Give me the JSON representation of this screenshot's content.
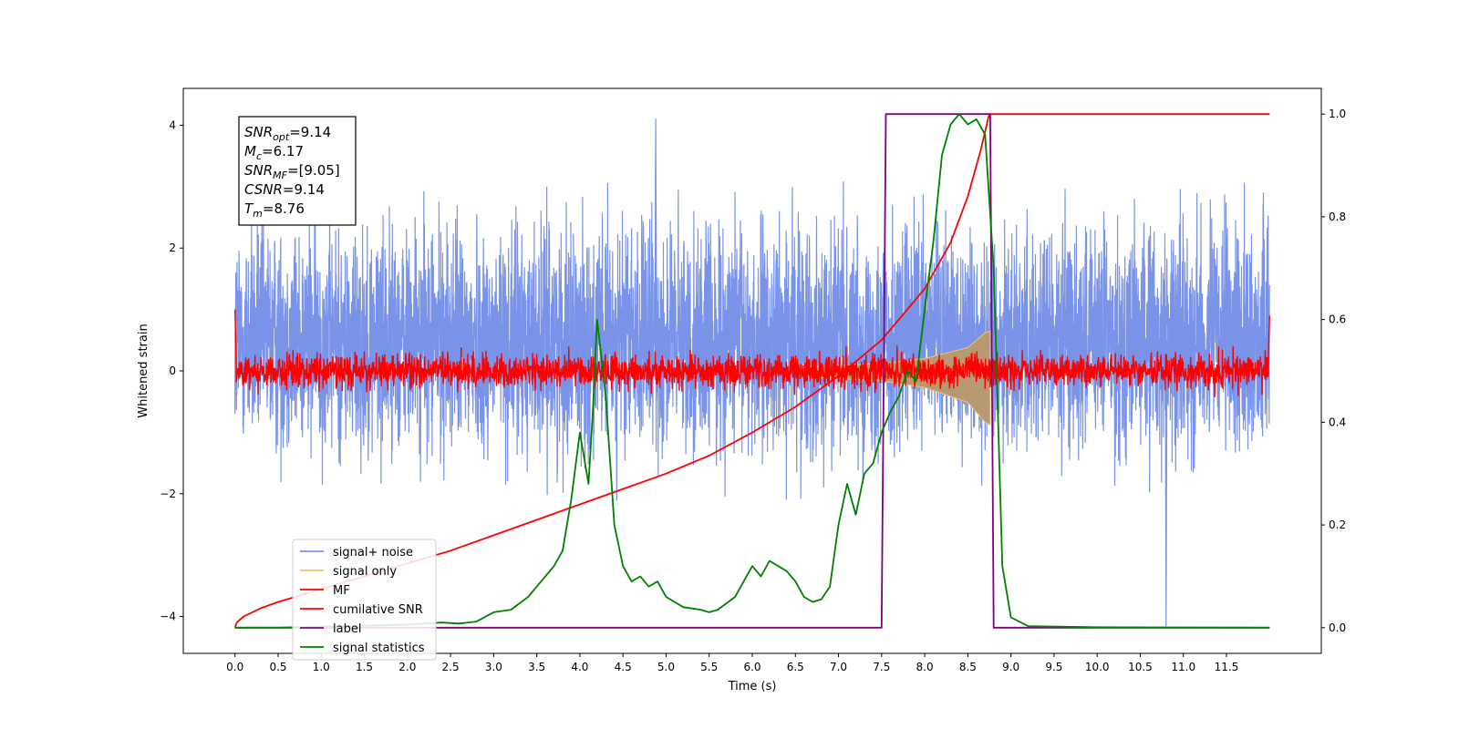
{
  "chart_data": {
    "type": "line",
    "xlabel": "Time (s)",
    "ylabel": "Whitened strain",
    "xlim": [
      -0.6,
      12.6
    ],
    "ylim": [
      -4.6,
      4.6
    ],
    "y2lim": [
      -0.05,
      1.05
    ],
    "grid": false,
    "legend_position": "lower-left",
    "x_ticks": [
      "0.0",
      "0.5",
      "1.0",
      "1.5",
      "2.0",
      "2.5",
      "3.0",
      "3.5",
      "4.0",
      "4.5",
      "5.0",
      "5.5",
      "6.0",
      "6.5",
      "7.0",
      "7.5",
      "8.0",
      "8.5",
      "9.0",
      "9.5",
      "10.0",
      "10.5",
      "11.0",
      "11.5"
    ],
    "y_ticks": [
      "−4",
      "−2",
      "0",
      "2",
      "4"
    ],
    "y2_ticks": [
      "0.0",
      "0.2",
      "0.4",
      "0.6",
      "0.8",
      "1.0"
    ],
    "annotation": {
      "lines": [
        {
          "base": "SNR",
          "sub": "opt",
          "rest": "=9.14"
        },
        {
          "base": "M",
          "sub": "c",
          "rest": "=6.17"
        },
        {
          "base": "SNR",
          "sub": "MF",
          "rest": "=[9.05]"
        },
        {
          "base": "CSNR",
          "sub": "",
          "rest": "=9.14"
        },
        {
          "base": "T",
          "sub": "m",
          "rest": "=8.76"
        }
      ]
    },
    "series": [
      {
        "name": "signal+ noise",
        "color": "#7893e8",
        "axis": "left",
        "description": "noise band",
        "x_range": [
          0,
          12
        ],
        "band_mean": 0.5,
        "band_sigma": 0.9,
        "peak_points": [
          [
            4.88,
            4.1
          ],
          [
            10.8,
            -4.15
          ]
        ]
      },
      {
        "name": "signal only",
        "color": "#f5c26b",
        "axis": "left",
        "chirp_envelope": [
          [
            6.5,
            0.06
          ],
          [
            7.5,
            0.12
          ],
          [
            8.0,
            0.2
          ],
          [
            8.5,
            0.38
          ],
          [
            8.7,
            0.62
          ],
          [
            8.76,
            0.65
          ]
        ]
      },
      {
        "name": "MF",
        "color": "#ff0000",
        "axis": "left",
        "band_amplitude": 0.25,
        "x_range": [
          0,
          12
        ]
      },
      {
        "name": "cumilative SNR",
        "color": "#ff0000",
        "axis": "right",
        "x": [
          0.0,
          0.02,
          0.1,
          0.3,
          0.5,
          1.0,
          1.5,
          2.0,
          2.5,
          3.0,
          3.5,
          4.0,
          4.5,
          5.0,
          5.5,
          6.0,
          6.5,
          7.0,
          7.5,
          8.0,
          8.3,
          8.5,
          8.65,
          8.72,
          8.74,
          8.76,
          12.0
        ],
        "y": [
          0.0,
          0.01,
          0.022,
          0.038,
          0.05,
          0.075,
          0.1,
          0.125,
          0.15,
          0.18,
          0.21,
          0.24,
          0.27,
          0.3,
          0.335,
          0.38,
          0.43,
          0.49,
          0.56,
          0.66,
          0.75,
          0.84,
          0.93,
          0.98,
          0.995,
          1.0,
          1.0
        ]
      },
      {
        "name": "label",
        "color": "#800080",
        "axis": "right",
        "x": [
          0.0,
          7.5,
          7.55,
          8.76,
          8.8,
          12.0
        ],
        "y": [
          0.0,
          0.0,
          1.0,
          1.0,
          0.0,
          0.0
        ]
      },
      {
        "name": "signal statistics",
        "color": "#008000",
        "axis": "right",
        "x": [
          0.0,
          0.5,
          1.0,
          1.5,
          2.0,
          2.2,
          2.4,
          2.6,
          2.8,
          3.0,
          3.2,
          3.4,
          3.5,
          3.6,
          3.7,
          3.8,
          3.9,
          4.0,
          4.1,
          4.15,
          4.2,
          4.3,
          4.4,
          4.5,
          4.6,
          4.7,
          4.8,
          4.9,
          5.0,
          5.2,
          5.4,
          5.5,
          5.6,
          5.8,
          6.0,
          6.1,
          6.2,
          6.3,
          6.4,
          6.5,
          6.6,
          6.7,
          6.8,
          6.9,
          7.0,
          7.1,
          7.2,
          7.3,
          7.4,
          7.5,
          7.6,
          7.7,
          7.8,
          7.9,
          8.0,
          8.1,
          8.2,
          8.3,
          8.4,
          8.5,
          8.6,
          8.7,
          8.8,
          8.9,
          9.0,
          9.2,
          10.0,
          12.0
        ],
        "y": [
          0.0,
          0.0,
          0.002,
          0.004,
          0.006,
          0.008,
          0.01,
          0.008,
          0.012,
          0.03,
          0.035,
          0.06,
          0.08,
          0.1,
          0.12,
          0.15,
          0.25,
          0.38,
          0.28,
          0.42,
          0.6,
          0.45,
          0.2,
          0.12,
          0.09,
          0.1,
          0.08,
          0.09,
          0.06,
          0.04,
          0.035,
          0.03,
          0.035,
          0.06,
          0.12,
          0.1,
          0.13,
          0.12,
          0.11,
          0.09,
          0.06,
          0.05,
          0.055,
          0.08,
          0.2,
          0.28,
          0.22,
          0.3,
          0.32,
          0.38,
          0.42,
          0.45,
          0.5,
          0.48,
          0.62,
          0.75,
          0.92,
          0.98,
          1.0,
          0.98,
          0.99,
          0.96,
          0.7,
          0.12,
          0.02,
          0.003,
          0.001,
          0.0
        ]
      }
    ]
  }
}
